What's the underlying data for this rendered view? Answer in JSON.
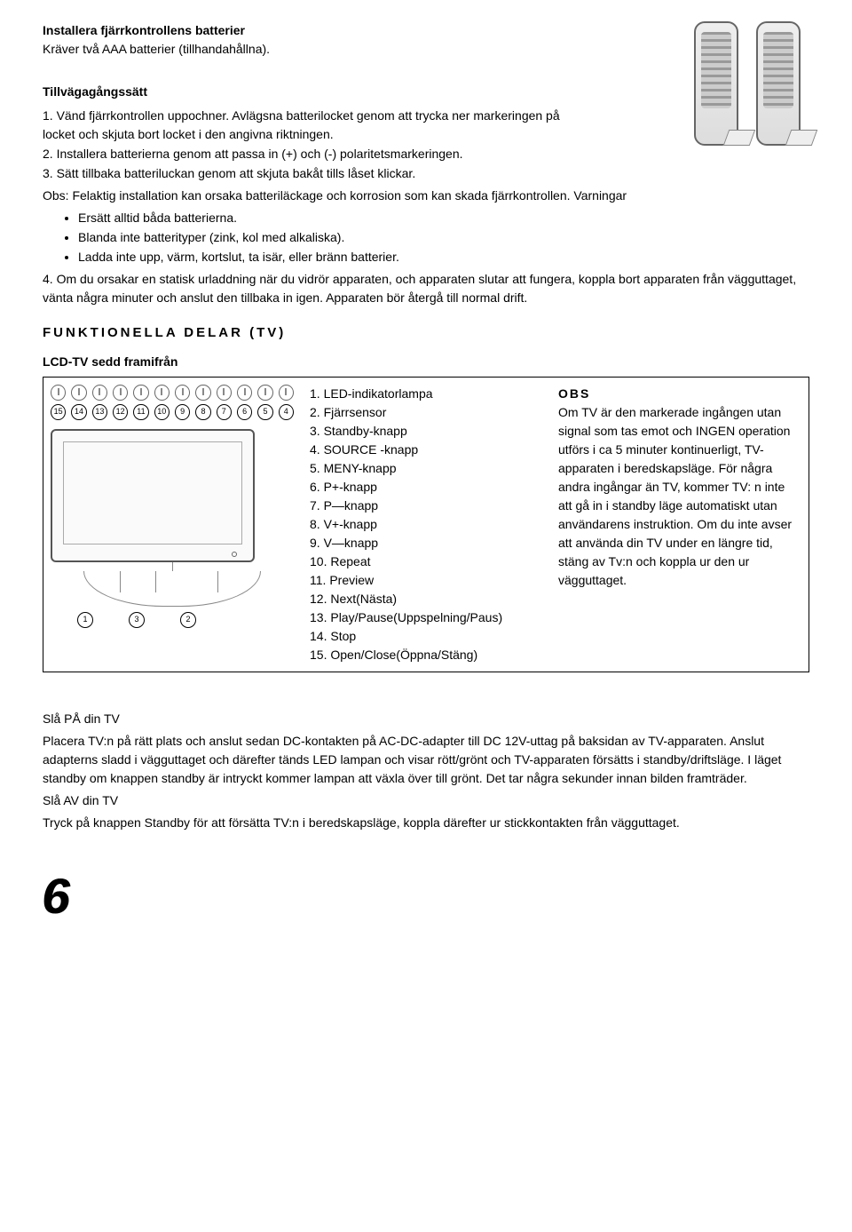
{
  "install": {
    "heading": "Installera fjärrkontrollens batterier",
    "subhead": "Kräver två AAA batterier (tillhandahållna).",
    "procedure_label": "Tillvägagångssätt",
    "steps": {
      "s1": "1. Vänd fjärrkontrollen uppochner. Avlägsna batterilocket genom att trycka ner markeringen på locket och skjuta bort locket i den angivna riktningen.",
      "s2": "2. Installera batterierna genom att passa in (+) och (-) polaritetsmarkeringen.",
      "s3": "3. Sätt tillbaka batteriluckan genom att skjuta bakåt tills låset klickar."
    },
    "obs": "Obs: Felaktig installation kan orsaka batteriläckage och korrosion som kan skada fjärrkontrollen. Varningar",
    "warnings": {
      "w1": "Ersätt alltid båda batterierna.",
      "w2": "Blanda inte batterityper (zink, kol med alkaliska).",
      "w3": "Ladda inte upp, värm, kortslut, ta isär, eller bränn batterier."
    },
    "s4": "4. Om du orsakar en statisk urladdning när du vidrör apparaten, och apparaten slutar att fungera, koppla bort apparaten från vägguttaget, vänta några minuter och anslut den tillbaka in igen. Apparaten bör återgå till normal drift."
  },
  "functional": {
    "title": "FUNKTIONELLA DELAR (TV)",
    "front_label": "LCD-TV sedd framifrån",
    "button_syms": [
      "▲",
      "■",
      "►/II",
      "|◄◄",
      "►►|",
      "V−",
      "V+",
      "P−",
      "P+",
      "MENU",
      "SOURCE",
      "⏻"
    ],
    "top_nums": [
      "15",
      "14",
      "13",
      "12",
      "11",
      "10",
      "9",
      "8",
      "7",
      "6",
      "5",
      "4"
    ],
    "stand_nums": [
      "1",
      "3",
      "2"
    ],
    "legend": {
      "l1": "1. LED-indikatorlampa",
      "l2": "2. Fjärrsensor",
      "l3": "3. Standby-knapp",
      "l4": "4. SOURCE -knapp",
      "l5": "5. MENY-knapp",
      "l6": "6. P+-knapp",
      "l7": "7. P—knapp",
      "l8": "8. V+-knapp",
      "l9": "9. V—knapp",
      "l10": "10. Repeat",
      "l11": "11. Preview",
      "l12": "12. Next(Nästa)",
      "l13": "13. Play/Pause(Uppspelning/Paus)",
      "l14": "14. Stop",
      "l15": "15. Open/Close(Öppna/Stäng)"
    },
    "obs_title": "OBS",
    "obs_body": "Om TV är den markerade ingången utan signal som tas emot och INGEN operation utförs i ca 5 minuter kontinuerligt, TV-apparaten i beredskapsläge. För några andra ingångar än TV, kommer TV: n inte att gå in i standby läge automatiskt utan användarens instruktion. Om du inte avser att använda din TV under en längre tid, stäng av Tv:n och koppla ur den ur vägguttaget."
  },
  "power": {
    "on_heading": "Slå PÅ din TV",
    "on_body": "Placera TV:n på rätt plats och anslut sedan DC-kontakten på AC-DC-adapter till DC 12V-uttag på baksidan av TV-apparaten. Anslut adapterns sladd i vägguttaget och därefter tänds LED lampan och visar rött/grönt och TV-apparaten försätts i standby/driftsläge. I läget standby om knappen standby är intryckt kommer lampan att växla över till grönt. Det tar några sekunder innan bilden framträder.",
    "off_heading": "Slå AV din TV",
    "off_body": "Tryck på knappen Standby för att försätta TV:n i beredskapsläge, koppla därefter ur stickkontakten från vägguttaget."
  },
  "page_number": "6"
}
